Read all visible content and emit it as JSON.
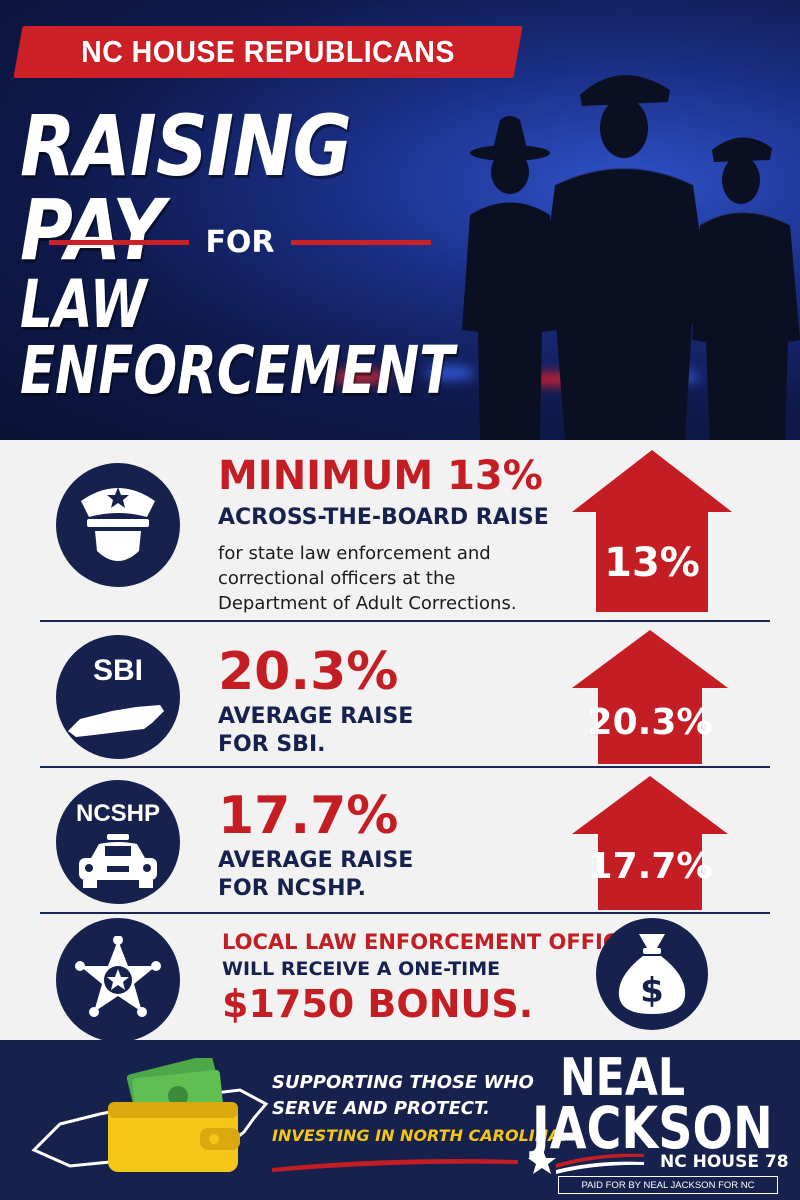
{
  "header": {
    "banner": "NC HOUSE REPUBLICANS",
    "title_line1": "RAISING PAY",
    "title_for": "FOR",
    "title_line2": "LAW ENFORCEMENT"
  },
  "items": [
    {
      "icon": "police-cap-badge-icon",
      "headline": "MINIMUM 13%",
      "subhead": "ACROSS-THE-BOARD RAISE",
      "desc": [
        "for state law enforcement and",
        "correctional officers at the",
        "Department of Adult Corrections."
      ],
      "arrow_value": "13%"
    },
    {
      "icon_label": "SBI",
      "icon": "nc-map-icon",
      "headline": "20.3%",
      "subhead_lines": [
        "AVERAGE RAISE",
        "FOR SBI."
      ],
      "arrow_value": "20.3%"
    },
    {
      "icon_label": "NCSHP",
      "icon": "patrol-car-icon",
      "headline": "17.7%",
      "subhead_lines": [
        "AVERAGE RAISE",
        "FOR NCSHP."
      ],
      "arrow_value": "17.7%"
    },
    {
      "icon": "sheriff-star-icon",
      "line1": "LOCAL LAW ENFORCEMENT OFFICERS",
      "line2": "WILL RECEIVE A ONE-TIME",
      "line3": "$1750 BONUS.",
      "side_icon": "money-bag-icon"
    }
  ],
  "footer": {
    "tagline1": "SUPPORTING THOSE WHO",
    "tagline2": "SERVE AND PROTECT.",
    "tagline3": "INVESTING IN NORTH CAROLINA.",
    "name1": "NEAL",
    "name2": "JACKSON",
    "district": "NC HOUSE 78",
    "paid_for": "PAID FOR BY NEAL JACKSON FOR NC"
  },
  "colors": {
    "red": "#c41e24",
    "navy": "#16214d",
    "gold": "#f5c518",
    "background": "#f2f2f2"
  }
}
